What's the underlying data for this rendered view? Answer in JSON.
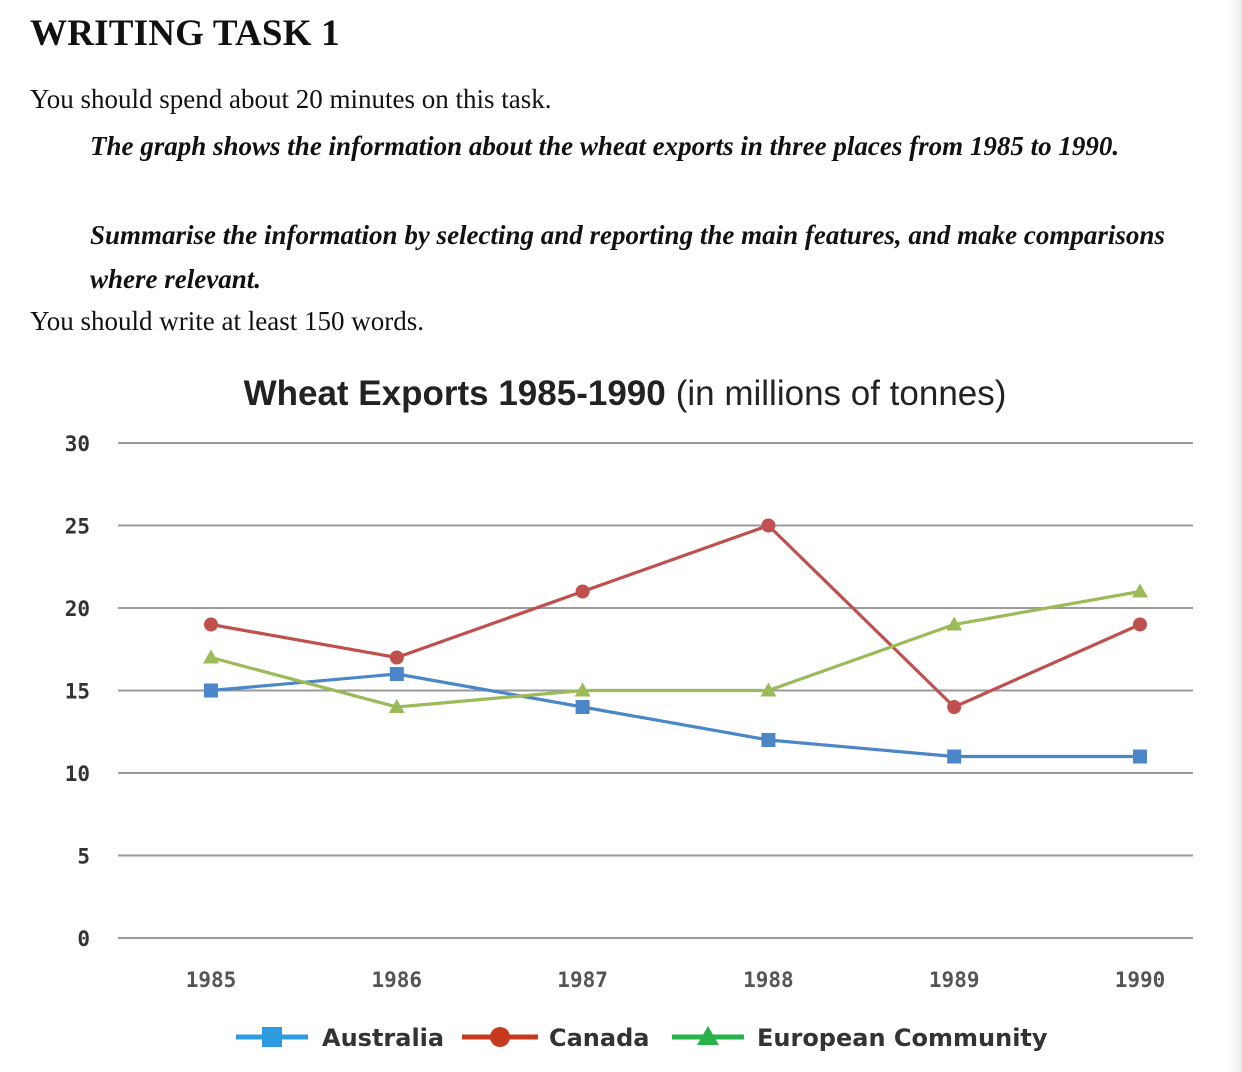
{
  "page": {
    "heading": "WRITING TASK 1",
    "intro": "You should spend about 20 minutes on this task.",
    "prompt_1": "The graph shows the information about the wheat exports in three places from 1985 to 1990.",
    "prompt_2": "Summarise the information by selecting and reporting the main features, and make comparisons where relevant.",
    "outro": "You should write at least 150 words."
  },
  "chart_data": {
    "type": "line",
    "title": "Wheat Exports 1985-1990",
    "title_suffix": "(in millions of tonnes)",
    "xlabel": "",
    "ylabel": "",
    "categories": [
      "1985",
      "1986",
      "1987",
      "1988",
      "1989",
      "1990"
    ],
    "ylim": [
      0,
      30
    ],
    "yticks": [
      0,
      5,
      10,
      15,
      20,
      25,
      30
    ],
    "grid": true,
    "legend_position": "bottom",
    "series": [
      {
        "name": "Australia",
        "color": "#4a86c8",
        "marker": "square",
        "values": [
          15,
          16,
          14,
          12,
          11,
          11
        ]
      },
      {
        "name": "Canada",
        "color": "#c0504d",
        "marker": "circle",
        "values": [
          19,
          17,
          21,
          25,
          14,
          19
        ]
      },
      {
        "name": "European Community",
        "color": "#9bbb59",
        "marker": "triangle",
        "values": [
          17,
          14,
          15,
          15,
          19,
          21
        ]
      }
    ],
    "legend_colors": [
      "#2e9ce0",
      "#c63a1e",
      "#27b34a"
    ]
  }
}
